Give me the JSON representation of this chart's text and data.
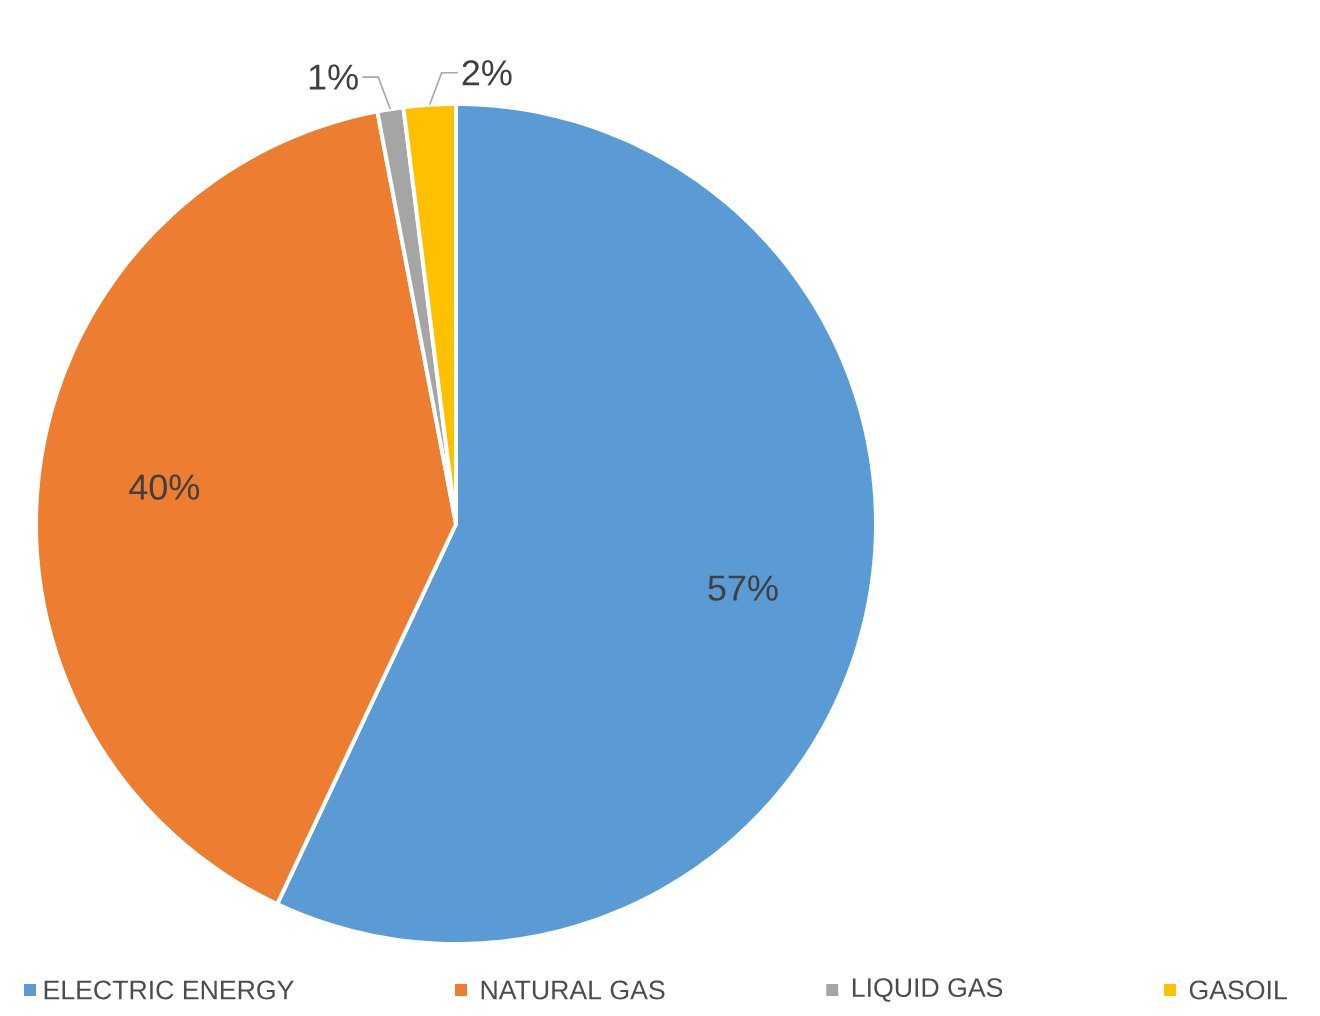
{
  "chart_data": {
    "type": "pie",
    "categories": [
      "ELECTRIC ENERGY",
      "NATURAL GAS",
      "LIQUID GAS",
      "GASOIL"
    ],
    "values": [
      57,
      40,
      1,
      2
    ],
    "value_labels": [
      "57%",
      "40%",
      "1%",
      "2%"
    ],
    "colors": [
      "#5b9bd5",
      "#ed7d31",
      "#a5a5a5",
      "#ffc000"
    ],
    "legend": "bottom"
  }
}
